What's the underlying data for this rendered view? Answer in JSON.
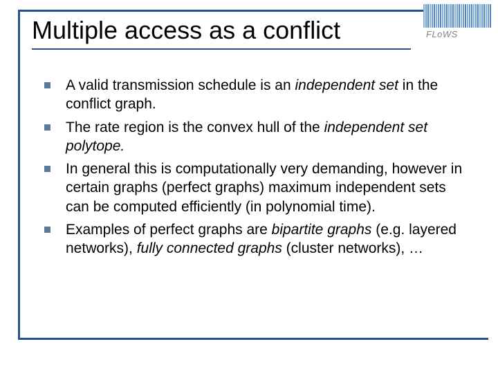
{
  "title": "Multiple access as a conflict",
  "logo_text": "FLoWS",
  "bullets": [
    {
      "segments": [
        {
          "text": "A valid transmission schedule is an ",
          "italic": false
        },
        {
          "text": "independent set",
          "italic": true
        },
        {
          "text": " in the conflict graph.",
          "italic": false
        }
      ]
    },
    {
      "segments": [
        {
          "text": "The rate region is the convex hull of the ",
          "italic": false
        },
        {
          "text": "independent set polytope.",
          "italic": true
        }
      ]
    },
    {
      "segments": [
        {
          "text": "In general this is computationally very demanding, however in certain graphs (perfect graphs) maximum independent sets can be computed efficiently (in polynomial time).",
          "italic": false
        }
      ]
    },
    {
      "segments": [
        {
          "text": "Examples of perfect graphs are ",
          "italic": false
        },
        {
          "text": "bipartite graphs",
          "italic": true
        },
        {
          "text": " (e.g. layered networks), ",
          "italic": false
        },
        {
          "text": "fully connected graphs",
          "italic": true
        },
        {
          "text": " (cluster networks), …",
          "italic": false
        }
      ]
    }
  ],
  "colors": {
    "frame": "#2a4f8f",
    "bullet_marker": "#5b7a9c",
    "text": "#000000",
    "logo_text": "#808285",
    "background": "#ffffff"
  },
  "typography": {
    "title_fontsize": 36,
    "body_fontsize": 21,
    "logo_fontsize": 13
  }
}
